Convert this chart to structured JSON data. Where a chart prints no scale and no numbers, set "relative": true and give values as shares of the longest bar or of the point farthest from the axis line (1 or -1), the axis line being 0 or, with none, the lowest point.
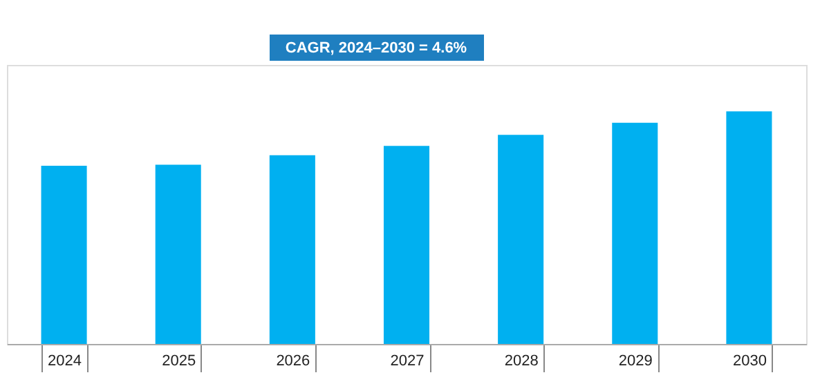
{
  "chart_data": {
    "type": "bar",
    "relative": true,
    "categories": [
      "2024",
      "2025",
      "2026",
      "2027",
      "2028",
      "2029",
      "2030"
    ],
    "values": [
      0.766,
      0.771,
      0.812,
      0.852,
      0.899,
      0.951,
      1
    ],
    "color": "#00b0f0",
    "annotations": [
      "CAGR, 2024–2030 = 4.6%"
    ],
    "grid": false
  }
}
